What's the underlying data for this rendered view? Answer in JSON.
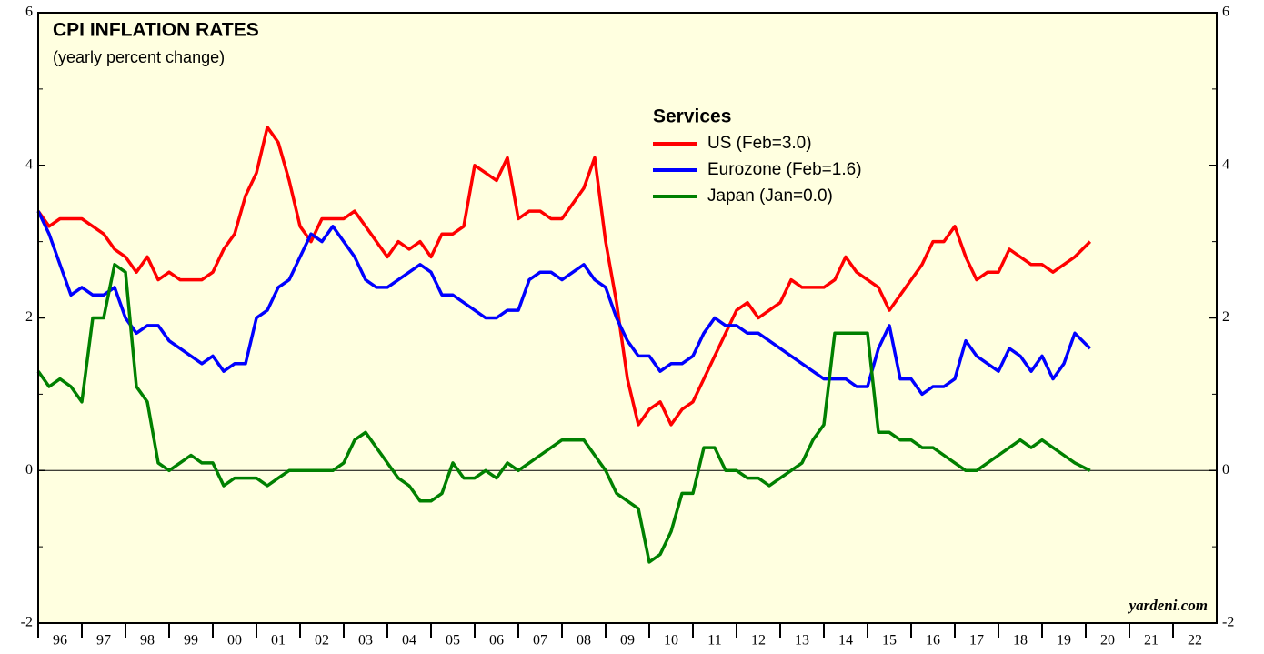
{
  "chart_data": {
    "type": "line",
    "title": "CPI INFLATION RATES",
    "subtitle": "(yearly percent change)",
    "legend_title": "Services",
    "annotation": "yardeni.com",
    "xlim": [
      1996,
      2023
    ],
    "ylim": [
      -2,
      6
    ],
    "yticks": [
      -2,
      0,
      2,
      4,
      6
    ],
    "xticks": [
      {
        "value": 1996,
        "label": "96"
      },
      {
        "value": 1997,
        "label": "97"
      },
      {
        "value": 1998,
        "label": "98"
      },
      {
        "value": 1999,
        "label": "99"
      },
      {
        "value": 2000,
        "label": "00"
      },
      {
        "value": 2001,
        "label": "01"
      },
      {
        "value": 2002,
        "label": "02"
      },
      {
        "value": 2003,
        "label": "03"
      },
      {
        "value": 2004,
        "label": "04"
      },
      {
        "value": 2005,
        "label": "05"
      },
      {
        "value": 2006,
        "label": "06"
      },
      {
        "value": 2007,
        "label": "07"
      },
      {
        "value": 2008,
        "label": "08"
      },
      {
        "value": 2009,
        "label": "09"
      },
      {
        "value": 2010,
        "label": "10"
      },
      {
        "value": 2011,
        "label": "11"
      },
      {
        "value": 2012,
        "label": "12"
      },
      {
        "value": 2013,
        "label": "13"
      },
      {
        "value": 2014,
        "label": "14"
      },
      {
        "value": 2015,
        "label": "15"
      },
      {
        "value": 2016,
        "label": "16"
      },
      {
        "value": 2017,
        "label": "17"
      },
      {
        "value": 2018,
        "label": "18"
      },
      {
        "value": 2019,
        "label": "19"
      },
      {
        "value": 2020,
        "label": "20"
      },
      {
        "value": 2021,
        "label": "21"
      },
      {
        "value": 2022,
        "label": "22"
      }
    ],
    "x": [
      1996,
      1996.25,
      1996.5,
      1996.75,
      1997,
      1997.25,
      1997.5,
      1997.75,
      1998,
      1998.25,
      1998.5,
      1998.75,
      1999,
      1999.25,
      1999.5,
      1999.75,
      2000,
      2000.25,
      2000.5,
      2000.75,
      2001,
      2001.25,
      2001.5,
      2001.75,
      2002,
      2002.25,
      2002.5,
      2002.75,
      2003,
      2003.25,
      2003.5,
      2003.75,
      2004,
      2004.25,
      2004.5,
      2004.75,
      2005,
      2005.25,
      2005.5,
      2005.75,
      2006,
      2006.25,
      2006.5,
      2006.75,
      2007,
      2007.25,
      2007.5,
      2007.75,
      2008,
      2008.25,
      2008.5,
      2008.75,
      2009,
      2009.25,
      2009.5,
      2009.75,
      2010,
      2010.25,
      2010.5,
      2010.75,
      2011,
      2011.25,
      2011.5,
      2011.75,
      2012,
      2012.25,
      2012.5,
      2012.75,
      2013,
      2013.25,
      2013.5,
      2013.75,
      2014,
      2014.25,
      2014.5,
      2014.75,
      2015,
      2015.25,
      2015.5,
      2015.75,
      2016,
      2016.25,
      2016.5,
      2016.75,
      2017,
      2017.25,
      2017.5,
      2017.75,
      2018,
      2018.25,
      2018.5,
      2018.75,
      2019,
      2019.25,
      2019.5,
      2019.75,
      2020.1
    ],
    "series": [
      {
        "name": "US (Feb=3.0)",
        "color": "#ff0000",
        "values": [
          3.4,
          3.2,
          3.3,
          3.3,
          3.3,
          3.2,
          3.1,
          2.9,
          2.8,
          2.6,
          2.8,
          2.5,
          2.6,
          2.5,
          2.5,
          2.5,
          2.6,
          2.9,
          3.1,
          3.6,
          3.9,
          4.5,
          4.3,
          3.8,
          3.2,
          3.0,
          3.3,
          3.3,
          3.3,
          3.4,
          3.2,
          3.0,
          2.8,
          3.0,
          2.9,
          3.0,
          2.8,
          3.1,
          3.1,
          3.2,
          4.0,
          3.9,
          3.8,
          4.1,
          3.3,
          3.4,
          3.4,
          3.3,
          3.3,
          3.5,
          3.7,
          4.1,
          3.0,
          2.2,
          1.2,
          0.6,
          0.8,
          0.9,
          0.6,
          0.8,
          0.9,
          1.2,
          1.5,
          1.8,
          2.1,
          2.2,
          2.0,
          2.1,
          2.2,
          2.5,
          2.4,
          2.4,
          2.4,
          2.5,
          2.8,
          2.6,
          2.5,
          2.4,
          2.1,
          2.3,
          2.5,
          2.7,
          3.0,
          3.0,
          3.2,
          2.8,
          2.5,
          2.6,
          2.6,
          2.9,
          2.8,
          2.7,
          2.7,
          2.6,
          2.7,
          2.8,
          3.0
        ]
      },
      {
        "name": "Eurozone (Feb=1.6)",
        "color": "#0000ff",
        "values": [
          3.4,
          3.1,
          2.7,
          2.3,
          2.4,
          2.3,
          2.3,
          2.4,
          2.0,
          1.8,
          1.9,
          1.9,
          1.7,
          1.6,
          1.5,
          1.4,
          1.5,
          1.3,
          1.4,
          1.4,
          2.0,
          2.1,
          2.4,
          2.5,
          2.8,
          3.1,
          3.0,
          3.2,
          3.0,
          2.8,
          2.5,
          2.4,
          2.4,
          2.5,
          2.6,
          2.7,
          2.6,
          2.3,
          2.3,
          2.2,
          2.1,
          2.0,
          2.0,
          2.1,
          2.1,
          2.5,
          2.6,
          2.6,
          2.5,
          2.6,
          2.7,
          2.5,
          2.4,
          2.0,
          1.7,
          1.5,
          1.5,
          1.3,
          1.4,
          1.4,
          1.5,
          1.8,
          2.0,
          1.9,
          1.9,
          1.8,
          1.8,
          1.7,
          1.6,
          1.5,
          1.4,
          1.3,
          1.2,
          1.2,
          1.2,
          1.1,
          1.1,
          1.6,
          1.9,
          1.2,
          1.2,
          1.0,
          1.1,
          1.1,
          1.2,
          1.7,
          1.5,
          1.4,
          1.3,
          1.6,
          1.5,
          1.3,
          1.5,
          1.2,
          1.4,
          1.8,
          1.6
        ]
      },
      {
        "name": "Japan (Jan=0.0)",
        "color": "#008000",
        "values": [
          1.3,
          1.1,
          1.2,
          1.1,
          0.9,
          2.0,
          2.0,
          2.7,
          2.6,
          1.1,
          0.9,
          0.1,
          0.0,
          0.1,
          0.2,
          0.1,
          0.1,
          -0.2,
          -0.1,
          -0.1,
          -0.1,
          -0.2,
          -0.1,
          0.0,
          0.0,
          0.0,
          0.0,
          0.0,
          0.1,
          0.4,
          0.5,
          0.3,
          0.1,
          -0.1,
          -0.2,
          -0.4,
          -0.4,
          -0.3,
          0.1,
          -0.1,
          -0.1,
          0.0,
          -0.1,
          0.1,
          0.0,
          0.1,
          0.2,
          0.3,
          0.4,
          0.4,
          0.4,
          0.2,
          0.0,
          -0.3,
          -0.4,
          -0.5,
          -1.2,
          -1.1,
          -0.8,
          -0.3,
          -0.3,
          0.3,
          0.3,
          0.0,
          0.0,
          -0.1,
          -0.1,
          -0.2,
          -0.1,
          0.0,
          0.1,
          0.4,
          0.6,
          1.8,
          1.8,
          1.8,
          1.8,
          0.5,
          0.5,
          0.4,
          0.4,
          0.3,
          0.3,
          0.2,
          0.1,
          0.0,
          0.0,
          0.1,
          0.2,
          0.3,
          0.4,
          0.3,
          0.4,
          0.3,
          0.2,
          0.1,
          0.0
        ]
      }
    ]
  }
}
